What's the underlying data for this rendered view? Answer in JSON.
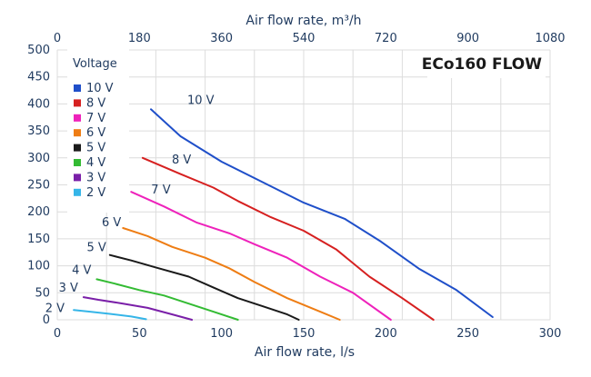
{
  "chart_data": {
    "type": "line",
    "title": "ECo160 FLOW",
    "xlabel": "Air flow rate, l/s",
    "x2label": "Air flow rate, m³/h",
    "ylabel": "",
    "xlim": [
      0,
      300
    ],
    "x2lim": [
      0,
      1080
    ],
    "ylim": [
      0,
      500
    ],
    "x_ticks": [
      "0",
      "50",
      "100",
      "150",
      "200",
      "250",
      "300"
    ],
    "x2_ticks": [
      "0",
      "180",
      "360",
      "540",
      "720",
      "900",
      "1080"
    ],
    "y_ticks": [
      "0",
      "50",
      "100",
      "150",
      "200",
      "250",
      "300",
      "350",
      "400",
      "450",
      "500"
    ],
    "grid": true,
    "legend_title": "Voltage",
    "legend_position": "top-left",
    "series": [
      {
        "name": "10 V",
        "label": "10 V",
        "color": "#1f4fc9",
        "x": [
          57,
          75,
          100,
          125,
          150,
          175,
          197,
          220,
          243,
          265
        ],
        "y": [
          390,
          340,
          293,
          255,
          217,
          187,
          145,
          95,
          55,
          5
        ]
      },
      {
        "name": "8 V",
        "label": "8 V",
        "color": "#d62020",
        "x": [
          52,
          75,
          95,
          110,
          130,
          150,
          170,
          190,
          210,
          229
        ],
        "y": [
          300,
          270,
          245,
          220,
          190,
          165,
          130,
          80,
          40,
          0
        ]
      },
      {
        "name": "7 V",
        "label": "7 V",
        "color": "#ee22bb",
        "x": [
          45,
          65,
          85,
          105,
          120,
          140,
          160,
          180,
          203
        ],
        "y": [
          237,
          210,
          180,
          160,
          140,
          115,
          80,
          50,
          0
        ]
      },
      {
        "name": "6 V",
        "label": "6 V",
        "color": "#ee7d14",
        "x": [
          40,
          55,
          70,
          90,
          105,
          120,
          140,
          160,
          172
        ],
        "y": [
          170,
          155,
          135,
          115,
          95,
          70,
          40,
          15,
          0
        ]
      },
      {
        "name": "5 V",
        "label": "5 V",
        "color": "#1a1a1a",
        "x": [
          32,
          45,
          60,
          80,
          95,
          110,
          125,
          140,
          147
        ],
        "y": [
          120,
          110,
          97,
          80,
          60,
          40,
          25,
          10,
          0
        ]
      },
      {
        "name": "4 V",
        "label": "4 V",
        "color": "#33bb33",
        "x": [
          24,
          35,
          50,
          65,
          80,
          95,
          110
        ],
        "y": [
          75,
          67,
          55,
          45,
          30,
          15,
          0
        ]
      },
      {
        "name": "3 V",
        "label": "3 V",
        "color": "#7a1fa8",
        "x": [
          16,
          25,
          40,
          55,
          70,
          82
        ],
        "y": [
          42,
          37,
          30,
          22,
          10,
          0
        ]
      },
      {
        "name": "2 V",
        "label": "2 V",
        "color": "#35b5e8",
        "x": [
          10,
          20,
          32,
          45,
          54
        ],
        "y": [
          18,
          15,
          11,
          6,
          1
        ]
      }
    ]
  }
}
